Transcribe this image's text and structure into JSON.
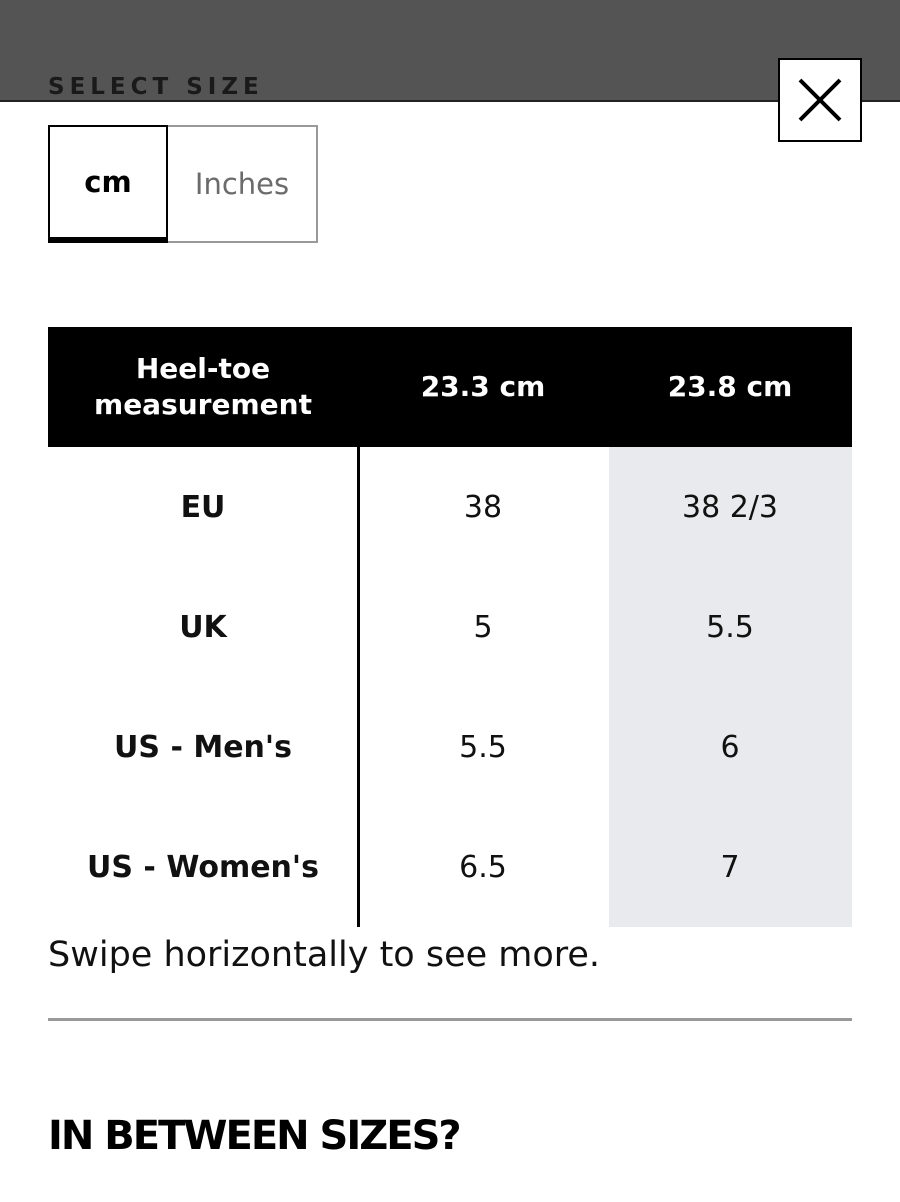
{
  "header": {
    "title": "SELECT SIZE",
    "close_icon": "close-icon"
  },
  "unit_toggle": {
    "options": [
      "cm",
      "Inches"
    ],
    "selected": "cm"
  },
  "size_table": {
    "columns": [
      "Heel-toe measurement",
      "23.3 cm",
      "23.8 cm"
    ],
    "rows": [
      {
        "label": "EU",
        "values": [
          "38",
          "38 2/3"
        ]
      },
      {
        "label": "UK",
        "values": [
          "5",
          "5.5"
        ]
      },
      {
        "label": "US - Men's",
        "values": [
          "5.5",
          "6"
        ]
      },
      {
        "label": "US - Women's",
        "values": [
          "6.5",
          "7"
        ]
      }
    ],
    "highlight_color": "#e9eaed",
    "header_bg": "#000000"
  },
  "swipe_hint": "Swipe horizontally to see more.",
  "in_between": {
    "title": "IN BETWEEN SIZES?"
  }
}
